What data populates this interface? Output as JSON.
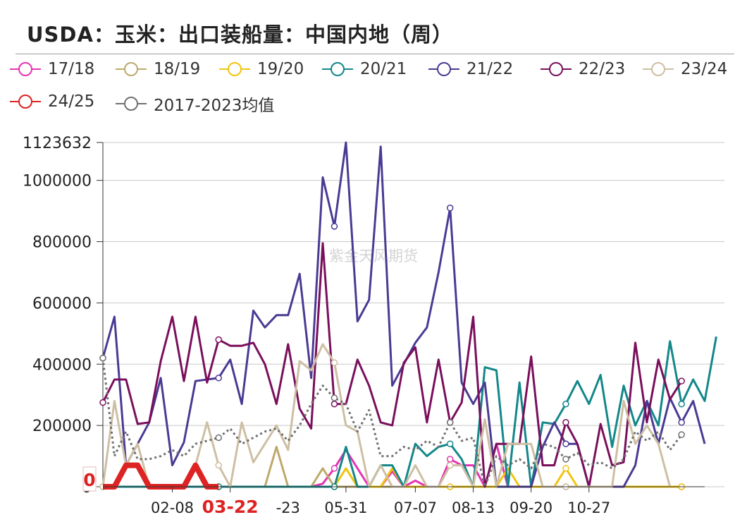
{
  "title": "USDA：玉米：出口装船量：中国内地（周）",
  "watermark": "紫金天风期货",
  "legend": [
    {
      "label": "17/18",
      "color": "#e535b2"
    },
    {
      "label": "18/19",
      "color": "#bda96a"
    },
    {
      "label": "19/20",
      "color": "#f2c40f"
    },
    {
      "label": "20/21",
      "color": "#13878a"
    },
    {
      "label": "21/22",
      "color": "#4b3a94"
    },
    {
      "label": "22/23",
      "color": "#7a0f5c"
    },
    {
      "label": "23/24",
      "color": "#cdbfa3"
    },
    {
      "label": "24/25",
      "color": "#dd2323"
    },
    {
      "label": "2017-2023均值",
      "color": "#707070"
    }
  ],
  "chart_data": {
    "type": "line",
    "title": "USDA：玉米：出口装船量：中国内地（周）",
    "ylim": [
      0,
      1123632
    ],
    "y_ticks": [
      "0",
      "200000",
      "400000",
      "600000",
      "800000",
      "1000000",
      "1123632"
    ],
    "y_tick_values": [
      0,
      200000,
      400000,
      600000,
      800000,
      1000000,
      1123632
    ],
    "x_ticks": [
      "02-08",
      "03-22",
      "05-31",
      "07-07",
      "08-13",
      "09-20",
      "10-27"
    ],
    "x_tick_index": [
      6,
      11,
      21,
      27,
      32,
      37,
      42
    ],
    "x_tick_partial": {
      "label": "-23",
      "index": 16
    },
    "highlight": {
      "x_label": "03-22",
      "y_label": "0"
    },
    "grid": true,
    "legend_position": "top",
    "series": [
      {
        "name": "17/18",
        "color": "#e535b2",
        "style": "solid",
        "values": [
          0,
          0,
          0,
          0,
          0,
          0,
          0,
          0,
          0,
          0,
          0,
          0,
          0,
          0,
          0,
          0,
          0,
          0,
          0,
          10000,
          60000,
          120000,
          60000,
          0,
          0,
          50000,
          0,
          20000,
          0,
          0,
          90000,
          70000,
          70000,
          0,
          140000,
          0,
          0,
          0,
          0,
          0,
          0,
          0,
          0,
          0,
          0,
          0,
          0,
          0,
          0,
          0,
          0
        ]
      },
      {
        "name": "18/19",
        "color": "#bda96a",
        "style": "solid",
        "values": [
          0,
          0,
          0,
          0,
          0,
          0,
          0,
          0,
          0,
          0,
          0,
          0,
          0,
          0,
          0,
          130000,
          0,
          0,
          0,
          60000,
          0,
          0,
          0,
          0,
          0,
          0,
          0,
          0,
          0,
          0,
          0,
          0,
          0,
          0,
          0,
          0,
          0,
          0,
          0,
          0,
          0,
          0,
          0,
          0,
          0,
          0,
          0,
          0,
          0,
          0,
          0
        ]
      },
      {
        "name": "19/20",
        "color": "#f2c40f",
        "style": "solid",
        "values": [
          0,
          0,
          0,
          0,
          0,
          0,
          0,
          0,
          0,
          0,
          0,
          0,
          0,
          0,
          0,
          0,
          0,
          0,
          0,
          0,
          0,
          60000,
          0,
          0,
          0,
          60000,
          0,
          0,
          0,
          0,
          0,
          0,
          0,
          0,
          0,
          60000,
          0,
          0,
          0,
          0,
          60000,
          0,
          0,
          0,
          0,
          0,
          0,
          0,
          0,
          0,
          0
        ]
      },
      {
        "name": "20/21",
        "color": "#13878a",
        "style": "solid",
        "values": [
          0,
          0,
          0,
          0,
          0,
          0,
          0,
          0,
          0,
          0,
          0,
          0,
          0,
          0,
          0,
          0,
          0,
          0,
          0,
          0,
          0,
          130000,
          0,
          0,
          70000,
          70000,
          0,
          140000,
          100000,
          130000,
          140000,
          90000,
          0,
          390000,
          380000,
          0,
          340000,
          0,
          210000,
          205000,
          270000,
          345000,
          270000,
          365000,
          130000,
          330000,
          200000,
          280000,
          200000,
          475000,
          270000,
          350000,
          280000,
          490000
        ]
      },
      {
        "name": "21/22",
        "color": "#4b3a94",
        "style": "solid",
        "values": [
          420000,
          555000,
          70000,
          140000,
          210000,
          355000,
          70000,
          145000,
          345000,
          350000,
          355000,
          415000,
          270000,
          575000,
          520000,
          560000,
          560000,
          695000,
          355000,
          1010000,
          850000,
          1123632,
          540000,
          610000,
          1110000,
          330000,
          400000,
          470000,
          520000,
          700000,
          910000,
          340000,
          270000,
          340000,
          0,
          0,
          0,
          0,
          130000,
          210000,
          140000,
          140000,
          0,
          0,
          0,
          0,
          70000,
          280000,
          140000,
          290000,
          210000,
          280000,
          140000
        ]
      },
      {
        "name": "22/23",
        "color": "#7a0f5c",
        "style": "solid",
        "values": [
          275000,
          350000,
          350000,
          205000,
          210000,
          410000,
          555000,
          345000,
          555000,
          340000,
          480000,
          460000,
          460000,
          470000,
          400000,
          270000,
          465000,
          255000,
          190000,
          795000,
          270000,
          270000,
          415000,
          330000,
          210000,
          200000,
          405000,
          455000,
          210000,
          415000,
          210000,
          275000,
          555000,
          0,
          140000,
          140000,
          140000,
          425000,
          70000,
          70000,
          210000,
          140000,
          0,
          205000,
          70000,
          80000,
          470000,
          210000,
          415000,
          285000,
          345000
        ]
      },
      {
        "name": "23/24",
        "color": "#cdbfa3",
        "style": "solid",
        "values": [
          0,
          280000,
          70000,
          140000,
          0,
          0,
          0,
          0,
          70000,
          210000,
          70000,
          0,
          210000,
          80000,
          140000,
          200000,
          120000,
          410000,
          380000,
          465000,
          405000,
          200000,
          180000,
          0,
          70000,
          0,
          0,
          70000,
          0,
          0,
          70000,
          70000,
          0,
          220000,
          0,
          140000,
          140000,
          140000,
          0,
          0,
          0,
          0,
          0,
          0,
          0,
          280000,
          140000,
          200000,
          140000,
          0
        ]
      },
      {
        "name": "24/25",
        "color": "#dd2323",
        "style": "bold",
        "values": [
          0,
          0,
          70000,
          70000,
          0,
          0,
          0,
          0,
          70000,
          0,
          0
        ]
      },
      {
        "name": "2017-2023均值",
        "color": "#707070",
        "style": "dotted",
        "values": [
          420000,
          100000,
          180000,
          90000,
          90000,
          100000,
          120000,
          100000,
          140000,
          150000,
          160000,
          190000,
          140000,
          160000,
          180000,
          190000,
          150000,
          200000,
          270000,
          330000,
          290000,
          270000,
          180000,
          250000,
          100000,
          100000,
          130000,
          120000,
          150000,
          130000,
          210000,
          150000,
          160000,
          0,
          100000,
          70000,
          90000,
          60000,
          140000,
          130000,
          90000,
          110000,
          70000,
          80000,
          60000,
          90000,
          180000,
          150000,
          180000,
          120000,
          170000
        ]
      }
    ]
  }
}
